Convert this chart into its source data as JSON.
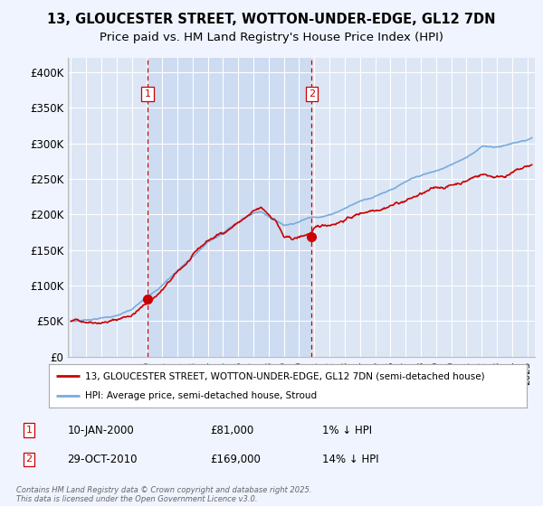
{
  "title": "13, GLOUCESTER STREET, WOTTON-UNDER-EDGE, GL12 7DN",
  "subtitle": "Price paid vs. HM Land Registry's House Price Index (HPI)",
  "ylim": [
    0,
    420000
  ],
  "yticks": [
    0,
    50000,
    100000,
    150000,
    200000,
    250000,
    300000,
    350000,
    400000
  ],
  "ytick_labels": [
    "£0",
    "£50K",
    "£100K",
    "£150K",
    "£200K",
    "£250K",
    "£300K",
    "£350K",
    "£400K"
  ],
  "xlim_start": 1994.8,
  "xlim_end": 2025.5,
  "background_color": "#f0f4ff",
  "plot_bg_color": "#dce6f5",
  "shade_color": "#c8d8f0",
  "grid_color": "#ffffff",
  "line1_color": "#cc0000",
  "line2_color": "#7aabdb",
  "vline_color": "#cc0000",
  "marker1_x": 2000.03,
  "marker1_y": 81000,
  "marker2_x": 2010.83,
  "marker2_y": 169000,
  "legend_line1": "13, GLOUCESTER STREET, WOTTON-UNDER-EDGE, GL12 7DN (semi-detached house)",
  "legend_line2": "HPI: Average price, semi-detached house, Stroud",
  "annot1_num": "1",
  "annot1_date": "10-JAN-2000",
  "annot1_price": "£81,000",
  "annot1_hpi": "1% ↓ HPI",
  "annot2_num": "2",
  "annot2_date": "29-OCT-2010",
  "annot2_price": "£169,000",
  "annot2_hpi": "14% ↓ HPI",
  "copyright": "Contains HM Land Registry data © Crown copyright and database right 2025.\nThis data is licensed under the Open Government Licence v3.0.",
  "title_fontsize": 10.5,
  "subtitle_fontsize": 9.5
}
